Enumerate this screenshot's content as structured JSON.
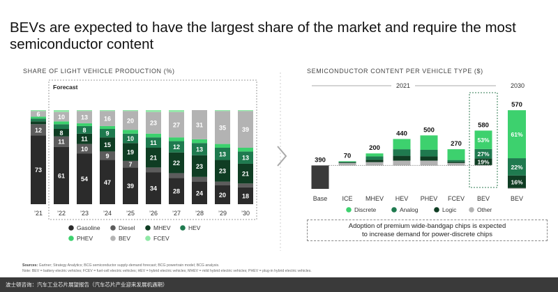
{
  "title": "BEVs are expected to have the largest share of the market and require the most semiconductor content",
  "colors": {
    "Gasoline": "#2b2b2b",
    "Diesel": "#5c5c5c",
    "MHEV": "#0f3d23",
    "HEV": "#1f7a4f",
    "PHEV": "#3dd16e",
    "BEV": "#b3b3b3",
    "FCEV": "#8fe8a6",
    "Discrete": "#3dd16e",
    "Analog": "#1f7a4f",
    "Logic": "#0f3d23",
    "Other": "#b3b3b3",
    "Base": "#3a3a3a"
  },
  "left_panel": {
    "title": "SHARE OF LIGHT VEHICLE PRODUCTION (%)",
    "forecast_label": "Forecast"
  },
  "right_panel": {
    "title": "SEMICONDUCTOR CONTENT PER VEHICLE TYPE ($)",
    "year_2021": "2021",
    "year_2030": "2030",
    "callout": [
      "Adoption of premium wide-bandgap chips is expected",
      "to increase demand for power-discrete chips"
    ]
  },
  "chart_data": [
    {
      "type": "bar",
      "stacked": true,
      "title": "SHARE OF LIGHT VEHICLE PRODUCTION (%)",
      "categories": [
        "’21",
        "’22",
        "’23",
        "’24",
        "’25",
        "’26",
        "’27",
        "’28",
        "’29",
        "’30"
      ],
      "ylim": [
        0,
        100
      ],
      "series": [
        {
          "name": "Gasoline",
          "values": [
            73,
            61,
            54,
            47,
            39,
            34,
            28,
            24,
            20,
            18
          ]
        },
        {
          "name": "Diesel",
          "values": [
            12,
            11,
            10,
            9,
            7,
            5,
            5,
            5,
            4,
            4
          ]
        },
        {
          "name": "MHEV",
          "values": [
            3,
            8,
            11,
            15,
            19,
            21,
            22,
            23,
            23,
            21
          ]
        },
        {
          "name": "HEV",
          "values": [
            3,
            5,
            8,
            9,
            10,
            11,
            12,
            13,
            13,
            13
          ]
        },
        {
          "name": "PHEV",
          "values": [
            2,
            3,
            3,
            3,
            4,
            4,
            4,
            4,
            4,
            4
          ]
        },
        {
          "name": "BEV",
          "values": [
            6,
            10,
            13,
            16,
            20,
            23,
            27,
            31,
            35,
            39
          ]
        },
        {
          "name": "FCEV",
          "values": [
            1,
            2,
            1,
            1,
            1,
            2,
            2,
            0,
            1,
            1
          ]
        }
      ],
      "labels": {
        "Gasoline": [
          "73",
          "61",
          "54",
          "47",
          "39",
          "34",
          "28",
          "24",
          "20",
          "18"
        ],
        "Diesel": [
          "12",
          "11",
          "10",
          "9",
          "7",
          "",
          "",
          "",
          "",
          ""
        ],
        "MHEV": [
          "",
          "8",
          "11",
          "15",
          "19",
          "21",
          "22",
          "23",
          "23",
          "21"
        ],
        "HEV": [
          "",
          "",
          "8",
          "9",
          "10",
          "11",
          "12",
          "13",
          "13",
          "13"
        ],
        "BEV": [
          "6",
          "10",
          "13",
          "16",
          "20",
          "23",
          "27",
          "31",
          "35",
          "39"
        ]
      },
      "legend": [
        "Gasoline",
        "Diesel",
        "MHEV",
        "HEV",
        "PHEV",
        "BEV",
        "FCEV"
      ],
      "legend_position": "bottom"
    },
    {
      "type": "bar",
      "subtype": "waterfall",
      "title": "SEMICONDUCTOR CONTENT PER VEHICLE TYPE ($)",
      "categories": [
        "Base",
        "ICE",
        "MHEV",
        "HEV",
        "PHEV",
        "FCEV",
        "BEV"
      ],
      "base_value": 390,
      "increments": [
        {
          "category": "ICE",
          "total": 70,
          "segments": [
            {
              "name": "Discrete",
              "value": 10
            },
            {
              "name": "Analog",
              "value": 10
            },
            {
              "name": "Logic",
              "value": 10
            },
            {
              "name": "Other",
              "value": 40
            }
          ]
        },
        {
          "category": "MHEV",
          "total": 200,
          "segments": [
            {
              "name": "Discrete",
              "value": 50
            },
            {
              "name": "Analog",
              "value": 55
            },
            {
              "name": "Logic",
              "value": 40
            },
            {
              "name": "Other",
              "value": 55
            }
          ]
        },
        {
          "category": "HEV",
          "total": 440,
          "segments": [
            {
              "name": "Discrete",
              "value": 170
            },
            {
              "name": "Analog",
              "value": 110
            },
            {
              "name": "Logic",
              "value": 80
            },
            {
              "name": "Other",
              "value": 80
            }
          ]
        },
        {
          "category": "PHEV",
          "total": 500,
          "segments": [
            {
              "name": "Discrete",
              "value": 240
            },
            {
              "name": "Analog",
              "value": 110
            },
            {
              "name": "Logic",
              "value": 70
            },
            {
              "name": "Other",
              "value": 80
            }
          ]
        },
        {
          "category": "FCEV",
          "total": 270,
          "segments": [
            {
              "name": "Discrete",
              "value": 180
            },
            {
              "name": "Analog",
              "value": 30
            },
            {
              "name": "Logic",
              "value": 20
            },
            {
              "name": "Other",
              "value": 40
            }
          ]
        },
        {
          "category": "BEV",
          "total": 580,
          "segments": [
            {
              "name": "Discrete",
              "value": 307,
              "label": "53%"
            },
            {
              "name": "Analog",
              "value": 157,
              "label": "27%"
            },
            {
              "name": "Logic",
              "value": 110,
              "label": "19%"
            },
            {
              "name": "Other",
              "value": 6
            }
          ]
        }
      ],
      "bev_2030": {
        "category": "BEV",
        "total": 570,
        "segments": [
          {
            "name": "Discrete",
            "value": 348,
            "label": "61%"
          },
          {
            "name": "Analog",
            "value": 125,
            "label": "22%"
          },
          {
            "name": "Logic",
            "value": 91,
            "label": "16%"
          },
          {
            "name": "Other",
            "value": 6
          }
        ]
      },
      "legend": [
        "Discrete",
        "Analog",
        "Logic",
        "Other"
      ],
      "legend_position": "bottom"
    }
  ],
  "notes": {
    "sources_label": "Sources:",
    "sources": "Gartner; Strategy Analytics; BCG semiconductor supply-demand forecast; BCG powertrain model; BCG analysis.",
    "note": "Note: BEV = battery electric vehicles; FCEV = fuel-cell electric vehicles; HEV = hybrid electric vehicles; MHEV = mild hybrid electric vehicles; PHEV = plug-in hybrid electric vehicles."
  },
  "footer": "波士顿咨询：汽车工业芯片展望报告（汽车芯片产业迎来发展机遇期）"
}
